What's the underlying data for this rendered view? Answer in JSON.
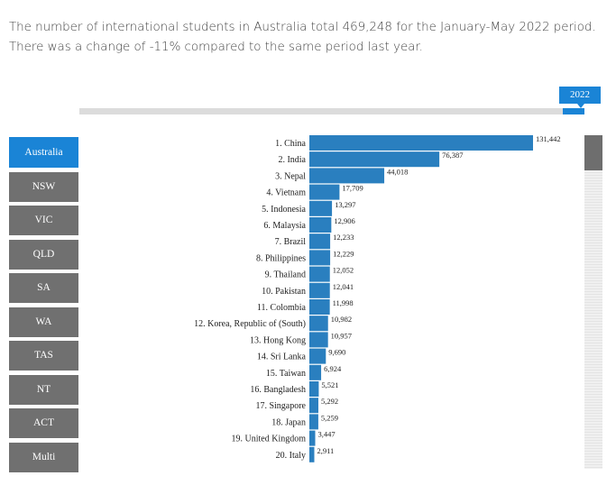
{
  "summary": {
    "line1": "The number of international students in Australia total 469,248 for the January-May 2022 period.",
    "line2": "There was a change of -11% compared to the same period last year."
  },
  "timeline": {
    "selected_year": "2022",
    "progress": 1.0
  },
  "sidebar": {
    "items": [
      {
        "label": "Australia",
        "active": true
      },
      {
        "label": "NSW",
        "active": false
      },
      {
        "label": "VIC",
        "active": false
      },
      {
        "label": "QLD",
        "active": false
      },
      {
        "label": "SA",
        "active": false
      },
      {
        "label": "WA",
        "active": false
      },
      {
        "label": "TAS",
        "active": false
      },
      {
        "label": "NT",
        "active": false
      },
      {
        "label": "ACT",
        "active": false
      },
      {
        "label": "Multi",
        "active": false
      }
    ]
  },
  "colors": {
    "bar": "#2a7fbf",
    "accent": "#1a84d6",
    "inactive_button": "#707070"
  },
  "chart_data": {
    "type": "bar",
    "orientation": "horizontal",
    "categories": [
      "1. China",
      "2. India",
      "3. Nepal",
      "4. Vietnam",
      "5. Indonesia",
      "6. Malaysia",
      "7. Brazil",
      "8. Philippines",
      "9. Thailand",
      "10. Pakistan",
      "11. Colombia",
      "12. Korea, Republic of (South)",
      "13. Hong Kong",
      "14. Sri Lanka",
      "15. Taiwan",
      "16. Bangladesh",
      "17. Singapore",
      "18. Japan",
      "19. United Kingdom",
      "20. Italy"
    ],
    "values": [
      131442,
      76387,
      44018,
      17709,
      13297,
      12906,
      12233,
      12229,
      12052,
      12041,
      11998,
      10982,
      10957,
      9690,
      6924,
      5521,
      5292,
      5259,
      3447,
      2911
    ],
    "value_labels": [
      "131,442",
      "76,387",
      "44,018",
      "17,709",
      "13,297",
      "12,906",
      "12,233",
      "12,229",
      "12,052",
      "12,041",
      "11,998",
      "10,982",
      "10,957",
      "9,690",
      "6,924",
      "5,521",
      "5,292",
      "5,259",
      "3,447",
      "2,911"
    ],
    "xlim": [
      0,
      131442
    ],
    "grid": false,
    "legend": false
  }
}
